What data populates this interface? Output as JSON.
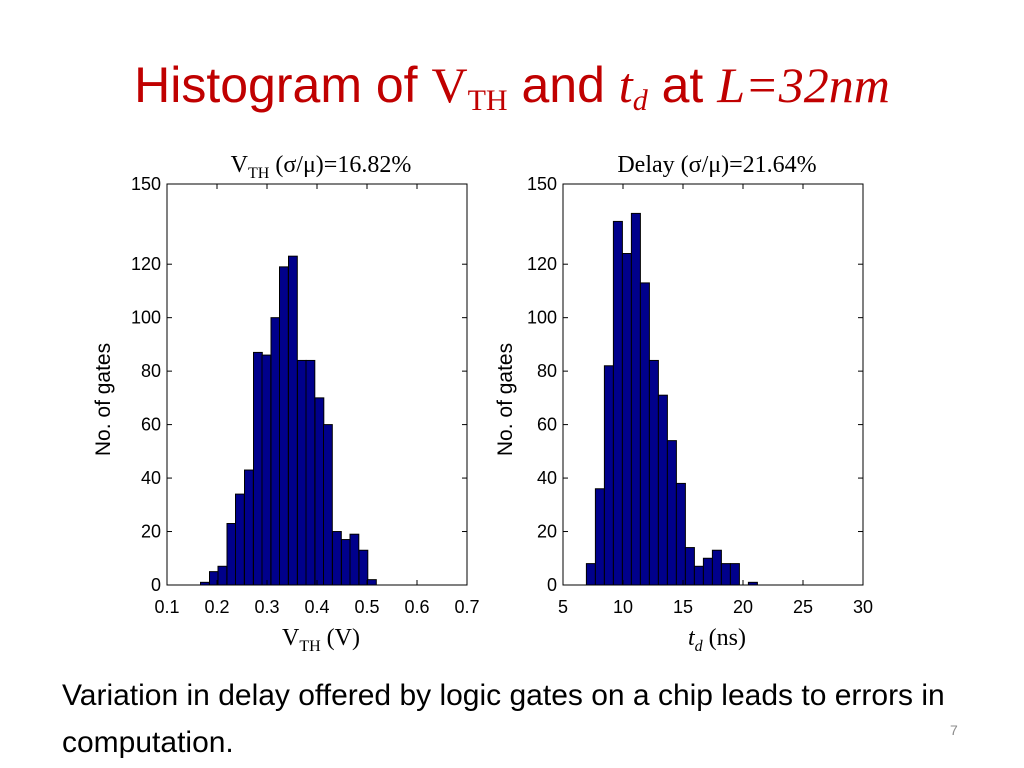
{
  "slide": {
    "title": {
      "part1": "Histogram of ",
      "v": "V",
      "v_sub": "TH",
      "part2": " and ",
      "t": "t",
      "t_sub": "d",
      "part3": " at ",
      "l_expr": "L=32nm"
    },
    "caption": "Variation in delay offered by logic gates on a chip leads to errors in computation.",
    "slide_number": "7",
    "colors": {
      "title": "#c00000",
      "bar_fill": "#00008b",
      "bar_edge": "#000000"
    }
  },
  "chart_data": [
    {
      "type": "bar",
      "title": {
        "main": "V",
        "sub": "TH",
        "rest": " (σ/μ)=16.82%"
      },
      "xlabel": {
        "main": "V",
        "sub": "TH",
        "rest": " (V)"
      },
      "ylabel": "No. of gates",
      "xlim": [
        0.1,
        0.7
      ],
      "ylim": [
        0,
        150
      ],
      "xticks": [
        "0.1",
        "0.2",
        "0.3",
        "0.4",
        "0.5",
        "0.6",
        "0.7"
      ],
      "yticks": [
        "0",
        "20",
        "40",
        "60",
        "80",
        "100",
        "120",
        "150"
      ],
      "bin_width": 0.0176,
      "bin_starts": [
        0.167,
        0.185,
        0.202,
        0.22,
        0.237,
        0.255,
        0.273,
        0.29,
        0.308,
        0.325,
        0.343,
        0.361,
        0.378,
        0.396,
        0.413,
        0.431,
        0.449,
        0.466,
        0.484,
        0.501,
        0.519
      ],
      "values": [
        1,
        5,
        7,
        23,
        34,
        43,
        87,
        86,
        100,
        119,
        123,
        84,
        84,
        70,
        60,
        20,
        17,
        19,
        13,
        2,
        0
      ]
    },
    {
      "type": "bar",
      "title": {
        "main": "Delay",
        "sub": "",
        "rest": " (σ/μ)=21.64%"
      },
      "xlabel": {
        "main": "t",
        "sub": "d",
        "rest": " (ns)"
      },
      "ylabel": "No. of gates",
      "xlim": [
        5,
        30
      ],
      "ylim": [
        0,
        150
      ],
      "xticks": [
        "5",
        "10",
        "15",
        "20",
        "25",
        "30"
      ],
      "yticks": [
        "0",
        "20",
        "40",
        "60",
        "80",
        "100",
        "120",
        "150"
      ],
      "bin_width": 0.75,
      "bin_starts": [
        6.95,
        7.7,
        8.45,
        9.2,
        9.95,
        10.7,
        11.45,
        12.2,
        12.95,
        13.7,
        14.45,
        15.2,
        15.95,
        16.7,
        17.45,
        18.2,
        18.95,
        19.7,
        20.45
      ],
      "values": [
        8,
        36,
        82,
        136,
        124,
        139,
        113,
        84,
        71,
        54,
        38,
        14,
        7,
        10,
        13,
        8,
        8,
        0,
        1
      ]
    }
  ]
}
